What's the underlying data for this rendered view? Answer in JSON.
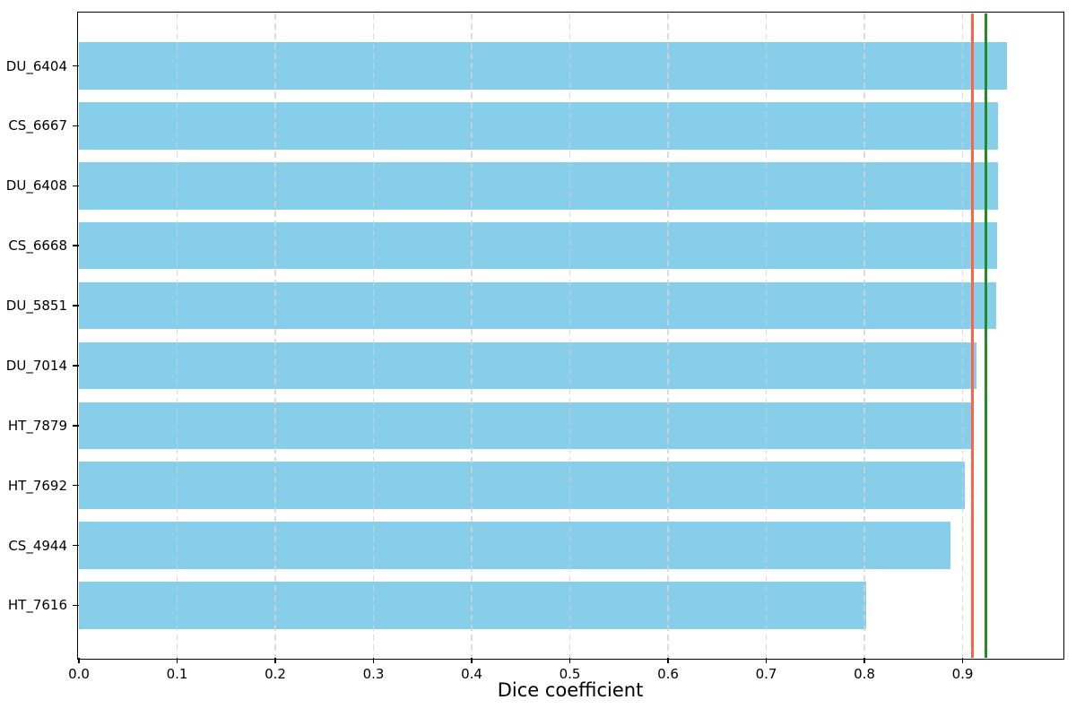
{
  "chart_data": {
    "type": "bar",
    "orientation": "horizontal",
    "title": "",
    "xlabel": "Dice coefficient",
    "ylabel": "",
    "categories": [
      "DU_6404",
      "CS_6667",
      "DU_6408",
      "CS_6668",
      "DU_5851",
      "DU_7014",
      "HT_7879",
      "HT_7692",
      "CS_4944",
      "HT_7616"
    ],
    "values": [
      0.945,
      0.9365,
      0.9358,
      0.9352,
      0.9341,
      0.914,
      0.9095,
      0.9025,
      0.8875,
      0.802
    ],
    "xlim": [
      0.0,
      1.0
    ],
    "xticks": {
      "values": [
        0.0,
        0.1,
        0.2,
        0.3,
        0.4,
        0.5,
        0.6,
        0.7,
        0.8,
        0.9
      ],
      "labels": [
        "0.0",
        "0.1",
        "0.2",
        "0.3",
        "0.4",
        "0.5",
        "0.6",
        "0.7",
        "0.8",
        "0.9"
      ]
    },
    "grid": {
      "axis": "x",
      "style": "dashed",
      "color": "#d3d3d3"
    },
    "legend": "none",
    "bar_color": "#87CEEB",
    "reference_lines": [
      {
        "value": 0.9102,
        "color": "#FF6347"
      },
      {
        "value": 0.9241,
        "color": "#228B22"
      }
    ]
  }
}
